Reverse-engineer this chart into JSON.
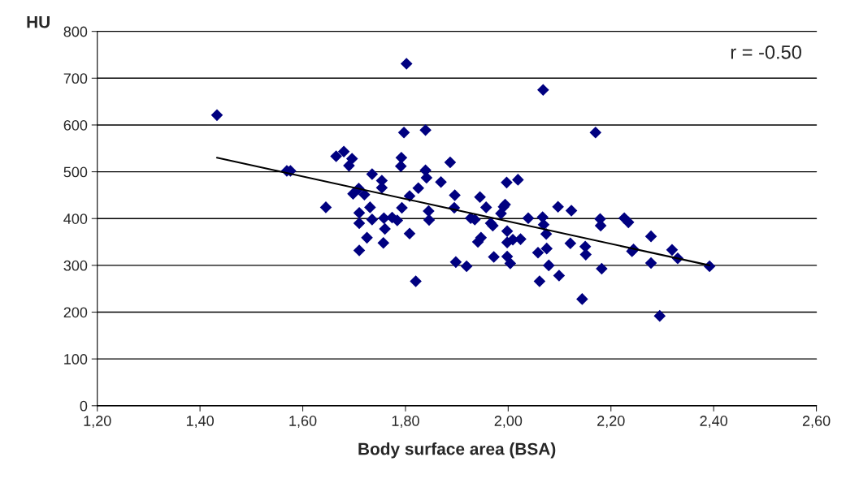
{
  "chart_data": {
    "type": "scatter",
    "xlabel": "Body surface area (BSA)",
    "ylabel": "HU",
    "annotations": [
      "r = -0.50"
    ],
    "series": [
      {
        "color": "#000080",
        "marker": "diamond",
        "x": [
          1.433,
          1.569,
          1.576,
          1.645,
          1.665,
          1.68,
          1.69,
          1.696,
          1.698,
          1.709,
          1.71,
          1.71,
          1.71,
          1.72,
          1.725,
          1.731,
          1.735,
          1.735,
          1.754,
          1.754,
          1.757,
          1.758,
          1.76,
          1.774,
          1.784,
          1.793,
          1.792,
          1.791,
          1.797,
          1.802,
          1.808,
          1.808,
          1.82,
          1.825,
          1.839,
          1.839,
          1.841,
          1.845,
          1.846,
          1.869,
          1.887,
          1.896,
          1.895,
          1.898,
          1.919,
          1.927,
          1.935,
          1.945,
          1.947,
          1.941,
          1.957,
          1.966,
          1.97,
          1.972,
          1.986,
          1.991,
          1.994,
          1.998,
          1.997,
          1.998,
          1.998,
          2.004,
          2.009,
          2.019,
          2.024,
          2.039,
          2.058,
          2.061,
          2.068,
          2.067,
          2.069,
          2.074,
          2.075,
          2.079,
          2.097,
          2.099,
          2.121,
          2.123,
          2.144,
          2.15,
          2.151,
          2.17,
          2.179,
          2.18,
          2.182,
          2.226,
          2.234,
          2.241,
          2.244,
          2.278,
          2.278,
          2.295,
          2.319,
          2.33,
          2.392
        ],
        "values": [
          621,
          502,
          502,
          424,
          533,
          543,
          513,
          528,
          453,
          464,
          412,
          390,
          332,
          451,
          359,
          424,
          495,
          398,
          481,
          466,
          348,
          401,
          378,
          402,
          396,
          423,
          530,
          512,
          584,
          731,
          448,
          368,
          266,
          465,
          589,
          503,
          487,
          416,
          397,
          478,
          520,
          450,
          423,
          307,
          298,
          401,
          398,
          446,
          359,
          350,
          424,
          390,
          385,
          318,
          411,
          425,
          430,
          373,
          477,
          349,
          319,
          304,
          355,
          483,
          356,
          401,
          327,
          266,
          675,
          403,
          387,
          367,
          336,
          300,
          425,
          278,
          347,
          417,
          228,
          340,
          323,
          584,
          399,
          385,
          293,
          401,
          392,
          330,
          334,
          362,
          305,
          192,
          333,
          315,
          298
        ]
      },
      {
        "type": "line",
        "color": "#000000",
        "line_style": "solid",
        "marker": "none",
        "x": [
          1.433,
          2.392
        ],
        "values": [
          530,
          300
        ]
      }
    ],
    "xlim": [
      1.2,
      2.6
    ],
    "xticks": [
      {
        "value": 1.2,
        "label": "1,20"
      },
      {
        "value": 1.4,
        "label": "1,40"
      },
      {
        "value": 1.6,
        "label": "1,60"
      },
      {
        "value": 1.8,
        "label": "1,80"
      },
      {
        "value": 2.0,
        "label": "2,00"
      },
      {
        "value": 2.2,
        "label": "2,20"
      },
      {
        "value": 2.4,
        "label": "2,40"
      },
      {
        "value": 2.6,
        "label": "2,60"
      }
    ],
    "ylim": [
      0,
      800
    ],
    "yticks": [
      0,
      100,
      200,
      300,
      400,
      500,
      600,
      700,
      800
    ],
    "grid": "y",
    "legend": false
  }
}
